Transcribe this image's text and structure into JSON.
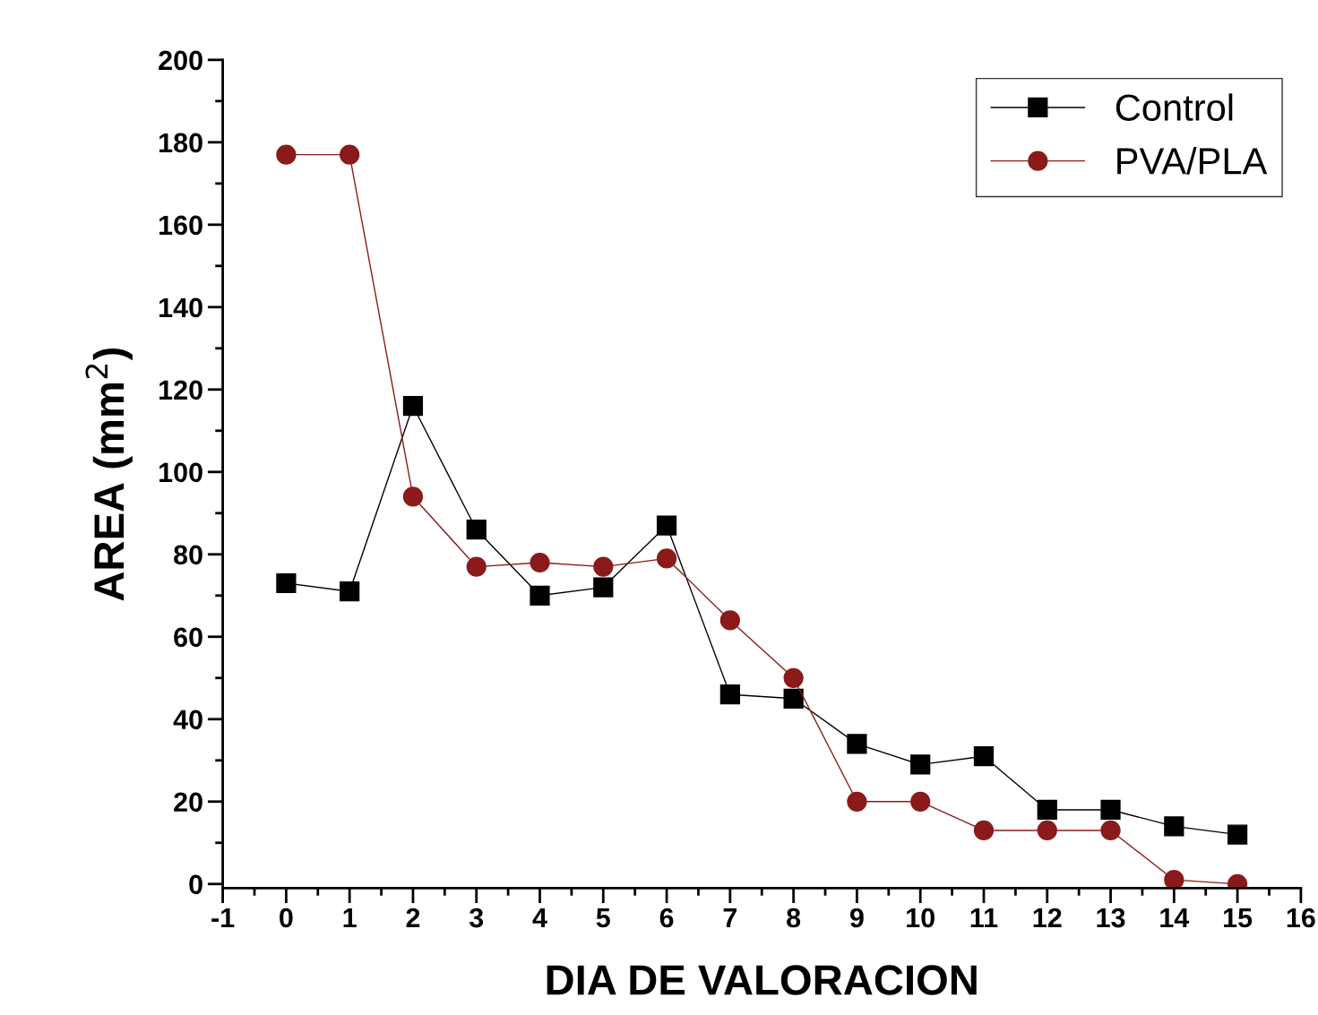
{
  "chart_data": {
    "type": "line",
    "xlabel": "DIA DE VALORACION",
    "ylabel": "AREA (mm$^{2}$)",
    "x": [
      0,
      1,
      2,
      3,
      4,
      5,
      6,
      7,
      8,
      9,
      10,
      11,
      12,
      13,
      14,
      15
    ],
    "series": [
      {
        "name": "Control",
        "color": "#000000",
        "marker": "square",
        "values": [
          73,
          71,
          116,
          86,
          70,
          72,
          87,
          46,
          45,
          34,
          29,
          31,
          18,
          18,
          14,
          12
        ]
      },
      {
        "name": "PVA/PLA",
        "color": "#8b1a1a",
        "marker": "circle",
        "values": [
          177,
          177,
          94,
          77,
          78,
          77,
          79,
          64,
          50,
          20,
          20,
          13,
          13,
          13,
          1,
          0
        ]
      }
    ],
    "xlim": [
      -1,
      16
    ],
    "xticks": [
      -1,
      0,
      1,
      2,
      3,
      4,
      5,
      6,
      7,
      8,
      9,
      10,
      11,
      12,
      13,
      14,
      15,
      16
    ],
    "ylim": [
      -1,
      200
    ],
    "yticks": [
      0,
      20,
      40,
      60,
      80,
      100,
      120,
      140,
      160,
      180,
      200
    ],
    "grid": false,
    "legend": "top right",
    "line_style": "solid"
  }
}
